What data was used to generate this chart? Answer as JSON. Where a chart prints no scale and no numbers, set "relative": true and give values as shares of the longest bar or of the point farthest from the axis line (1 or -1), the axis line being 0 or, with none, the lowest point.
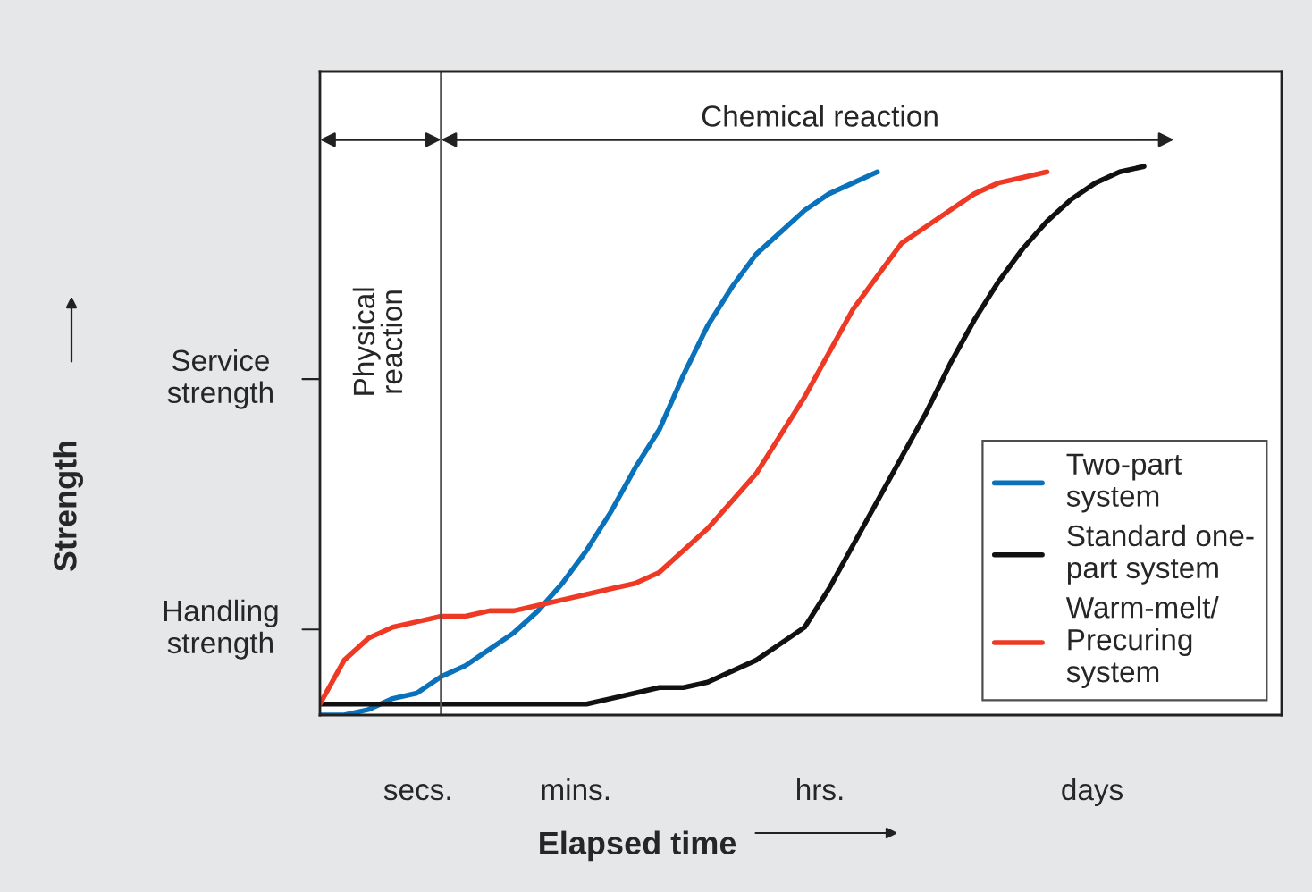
{
  "chart_data": {
    "type": "line",
    "relative": true,
    "xlabel": "Elapsed time",
    "categories": [
      null,
      null,
      null,
      null,
      null,
      null,
      null,
      null,
      null,
      null,
      null,
      null,
      null,
      null,
      null,
      null,
      null,
      null,
      null,
      null,
      null,
      null,
      null,
      null,
      null,
      null,
      null,
      null,
      null,
      null,
      null,
      null,
      null,
      null,
      null,
      null,
      null,
      null,
      null,
      null
    ],
    "series": [
      {
        "name": "Two-part\nsystem",
        "color": "#0a72ba",
        "values": [
          0.0,
          0.0,
          0.01,
          0.03,
          0.04,
          0.07,
          0.09,
          0.12,
          0.15,
          0.19,
          0.24,
          0.3,
          0.37,
          0.45,
          0.52,
          0.62,
          0.71,
          0.78,
          0.84,
          0.88,
          0.92,
          0.95,
          0.97,
          0.99,
          null,
          null,
          null,
          null,
          null,
          null,
          null,
          null,
          null,
          null,
          null,
          null,
          null,
          null,
          null,
          null
        ]
      },
      {
        "name": "Standard one-\npart system",
        "color": "#111111",
        "values": [
          0.02,
          0.02,
          0.02,
          0.02,
          0.02,
          0.02,
          0.02,
          0.02,
          0.02,
          0.02,
          0.02,
          0.02,
          0.03,
          0.04,
          0.05,
          0.05,
          0.06,
          0.08,
          0.1,
          0.13,
          0.16,
          0.23,
          0.31,
          0.39,
          0.47,
          0.55,
          0.64,
          0.72,
          0.79,
          0.85,
          0.9,
          0.94,
          0.97,
          0.99,
          1.0,
          null,
          null,
          null,
          null,
          null
        ]
      },
      {
        "name": "Warm-melt/\nPrecuring\nsystem",
        "color": "#ee3a24",
        "values": [
          0.02,
          0.1,
          0.14,
          0.16,
          0.17,
          0.18,
          0.18,
          0.19,
          0.19,
          0.2,
          0.21,
          0.22,
          0.23,
          0.24,
          0.26,
          0.3,
          0.34,
          0.39,
          0.44,
          0.51,
          0.58,
          0.66,
          0.74,
          0.8,
          0.86,
          0.89,
          0.92,
          0.95,
          0.97,
          0.98,
          0.99,
          null,
          null,
          null,
          null,
          null,
          null,
          null,
          null,
          null
        ]
      }
    ],
    "annotations": [
      "Physical\nreaction",
      "Chemical reaction",
      "Service\nstrength",
      "Handling\nstrength",
      "secs.",
      "mins.",
      "hrs.",
      "days",
      "Strength"
    ],
    "legend": "bottom right",
    "line_style": "solid",
    "marker": "none"
  }
}
